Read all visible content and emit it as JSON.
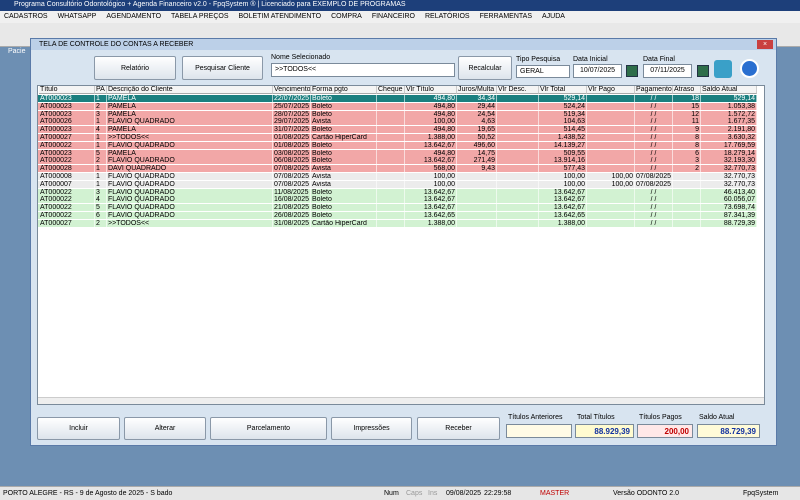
{
  "window": {
    "title": "Programa Consultório Odontológico + Agenda Financeiro v2.0 - FpqSystem ® | Licenciado para  EXEMPLO DE PROGRAMAS"
  },
  "menu": [
    "CADASTROS",
    "WHATSAPP",
    "AGENDAMENTO",
    "TABELA PREÇOS",
    "BOLETIM ATENDIMENTO",
    "COMPRA",
    "FINANCEIRO",
    "RELATÓRIOS",
    "FERRAMENTAS",
    "AJUDA"
  ],
  "toolbar": {
    "label": "Pacie"
  },
  "dialog": {
    "title": "TELA DE CONTROLE DO CONTAS A RECEBER",
    "buttons": {
      "report": "Relatório",
      "search_client": "Pesquisar Cliente",
      "recalc": "Recalcular"
    },
    "filters": {
      "name_label": "Nome Selecionado",
      "name_value": ">>TODOS<<",
      "type_label": "Tipo  Pesquisa",
      "type_value": "GERAL",
      "start_label": "Data Inicial",
      "start_value": "10/07/2025",
      "end_label": "Data Final",
      "end_value": "07/11/2025"
    },
    "table": {
      "columns": [
        "Título",
        "PA",
        "Descrição do Cliente",
        "Vencimento",
        "Forma pgto",
        "Cheque",
        "Vlr Título",
        "Juros/Multa",
        "Vlr Desc.",
        "Vlr Total",
        "Vlr Pago",
        "Pagamento",
        "Atraso",
        "Saldo Atual"
      ],
      "rows": [
        {
          "color": "#1b7f7f",
          "cells": [
            "AT000023",
            "1",
            "PAMELA",
            "22/07/2025",
            "Boleto",
            null,
            "494,80",
            "34,34",
            null,
            "529,14",
            null,
            "/ /",
            "18",
            "529,14"
          ]
        },
        {
          "color": "#f2a7a7",
          "cells": [
            "AT000023",
            "2",
            "PAMELA",
            "25/07/2025",
            "Boleto",
            null,
            "494,80",
            "29,44",
            null,
            "524,24",
            null,
            "/ /",
            "15",
            "1.053,38"
          ]
        },
        {
          "color": "#f2a7a7",
          "cells": [
            "AT000023",
            "3",
            "PAMELA",
            "28/07/2025",
            "Boleto",
            null,
            "494,80",
            "24,54",
            null,
            "519,34",
            null,
            "/ /",
            "12",
            "1.572,72"
          ]
        },
        {
          "color": "#f2a7a7",
          "cells": [
            "AT000026",
            "1",
            "FLAVIO QUADRADO",
            "29/07/2025",
            "Avista",
            null,
            "100,00",
            "4,63",
            null,
            "104,63",
            null,
            "/ /",
            "11",
            "1.677,35"
          ]
        },
        {
          "color": "#f2a7a7",
          "cells": [
            "AT000023",
            "4",
            "PAMELA",
            "31/07/2025",
            "Boleto",
            null,
            "494,80",
            "19,65",
            null,
            "514,45",
            null,
            "/ /",
            "9",
            "2.191,80"
          ]
        },
        {
          "color": "#f2a7a7",
          "cells": [
            "AT000027",
            "1",
            ">>TODOS<<",
            "01/08/2025",
            "Cartão HiperCard",
            null,
            "1.388,00",
            "50,52",
            null,
            "1.438,52",
            null,
            "/ /",
            "8",
            "3.630,32"
          ]
        },
        {
          "color": "#f2a7a7",
          "cells": [
            "AT000022",
            "1",
            "FLAVIO QUADRADO",
            "01/08/2025",
            "Boleto",
            null,
            "13.642,67",
            "496,60",
            null,
            "14.139,27",
            null,
            "/ /",
            "8",
            "17.769,59"
          ]
        },
        {
          "color": "#f2a7a7",
          "cells": [
            "AT000023",
            "5",
            "PAMELA",
            "03/08/2025",
            "Boleto",
            null,
            "494,80",
            "14,75",
            null,
            "509,55",
            null,
            "/ /",
            "6",
            "18.279,14"
          ]
        },
        {
          "color": "#f2a7a7",
          "cells": [
            "AT000022",
            "2",
            "FLAVIO QUADRADO",
            "06/08/2025",
            "Boleto",
            null,
            "13.642,67",
            "271,49",
            null,
            "13.914,16",
            null,
            "/ /",
            "3",
            "32.193,30"
          ]
        },
        {
          "color": "#f2a7a7",
          "cells": [
            "AT000028",
            "1",
            "DAVI QUADRADO",
            "07/08/2025",
            "Avista",
            null,
            "568,00",
            "9,43",
            null,
            "577,43",
            null,
            "/ /",
            "2",
            "32.770,73"
          ]
        },
        {
          "color": "#ececec",
          "cells": [
            "AT000008",
            "1",
            "FLAVIO QUADRADO",
            "07/08/2025",
            "Avista",
            null,
            "100,00",
            null,
            null,
            "100,00",
            "100,00",
            "07/08/2025",
            null,
            "32.770,73"
          ]
        },
        {
          "color": "#ececec",
          "cells": [
            "AT000007",
            "1",
            "FLAVIO QUADRADO",
            "07/08/2025",
            "Avista",
            null,
            "100,00",
            null,
            null,
            "100,00",
            "100,00",
            "07/08/2025",
            null,
            "32.770,73"
          ]
        },
        {
          "color": "#d2f2d2",
          "cells": [
            "AT000022",
            "3",
            "FLAVIO QUADRADO",
            "11/08/2025",
            "Boleto",
            null,
            "13.642,67",
            null,
            null,
            "13.642,67",
            null,
            "/ /",
            null,
            "46.413,40"
          ]
        },
        {
          "color": "#d2f2d2",
          "cells": [
            "AT000022",
            "4",
            "FLAVIO QUADRADO",
            "16/08/2025",
            "Boleto",
            null,
            "13.642,67",
            null,
            null,
            "13.642,67",
            null,
            "/ /",
            null,
            "60.056,07"
          ]
        },
        {
          "color": "#d2f2d2",
          "cells": [
            "AT000022",
            "5",
            "FLAVIO QUADRADO",
            "21/08/2025",
            "Boleto",
            null,
            "13.642,67",
            null,
            null,
            "13.642,67",
            null,
            "/ /",
            null,
            "73.698,74"
          ]
        },
        {
          "color": "#d2f2d2",
          "cells": [
            "AT000022",
            "6",
            "FLAVIO QUADRADO",
            "26/08/2025",
            "Boleto",
            null,
            "13.642,65",
            null,
            null,
            "13.642,65",
            null,
            "/ /",
            null,
            "87.341,39"
          ]
        },
        {
          "color": "#d2f2d2",
          "cells": [
            "AT000027",
            "2",
            ">>TODOS<<",
            "31/08/2025",
            "Cartão HiperCard",
            null,
            "1.388,00",
            null,
            null,
            "1.388,00",
            null,
            "/ /",
            null,
            "88.729,39"
          ]
        }
      ]
    },
    "actions": [
      "Incluir",
      "Alterar",
      "Parcelamento",
      "Impressões",
      "Receber"
    ],
    "totals": [
      {
        "label": "Títulos Anteriores",
        "value": null
      },
      {
        "label": "Total Títulos",
        "value": "88.929,39"
      },
      {
        "label": "Títulos Pagos",
        "value": "200,00"
      },
      {
        "label": "Saldo Atual",
        "value": "88.729,39"
      }
    ]
  },
  "status": [
    "PORTO ALEGRE - RS - 9 de Agosto de 2025 - S bado",
    "Num",
    "Caps",
    "Ins",
    "09/08/2025",
    "22:29:58",
    "MASTER",
    "Versão ODONTO 2.0",
    "FpqSystem"
  ]
}
